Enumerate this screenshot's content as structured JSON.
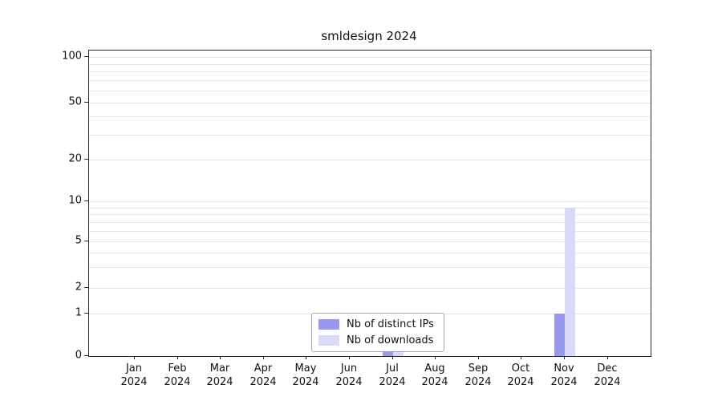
{
  "chart_data": {
    "type": "bar",
    "title": "smldesign 2024",
    "year_label": "2024",
    "months": [
      "Jan",
      "Feb",
      "Mar",
      "Apr",
      "May",
      "Jun",
      "Jul",
      "Aug",
      "Sep",
      "Oct",
      "Nov",
      "Dec"
    ],
    "scale": "symlog",
    "ylim": [
      0,
      100
    ],
    "yticks": [
      0,
      1,
      2,
      5,
      10,
      20,
      50,
      100
    ],
    "grid": true,
    "legend_position": "inside-bottom-center",
    "series": [
      {
        "name": "Nb of distinct IPs",
        "color": "#9898ec",
        "values": [
          0,
          0,
          0,
          0,
          0,
          0,
          1,
          0,
          0,
          0,
          1,
          0
        ]
      },
      {
        "name": "Nb of downloads",
        "color": "#d9d9f8",
        "values": [
          0,
          0,
          0,
          0,
          0,
          0,
          1,
          0,
          0,
          0,
          9,
          0
        ]
      }
    ]
  },
  "colors": {
    "grid": "#e5e5e5",
    "axis": "#2a2a2a",
    "legend_border": "#a6a6a6",
    "text": "#111111"
  }
}
